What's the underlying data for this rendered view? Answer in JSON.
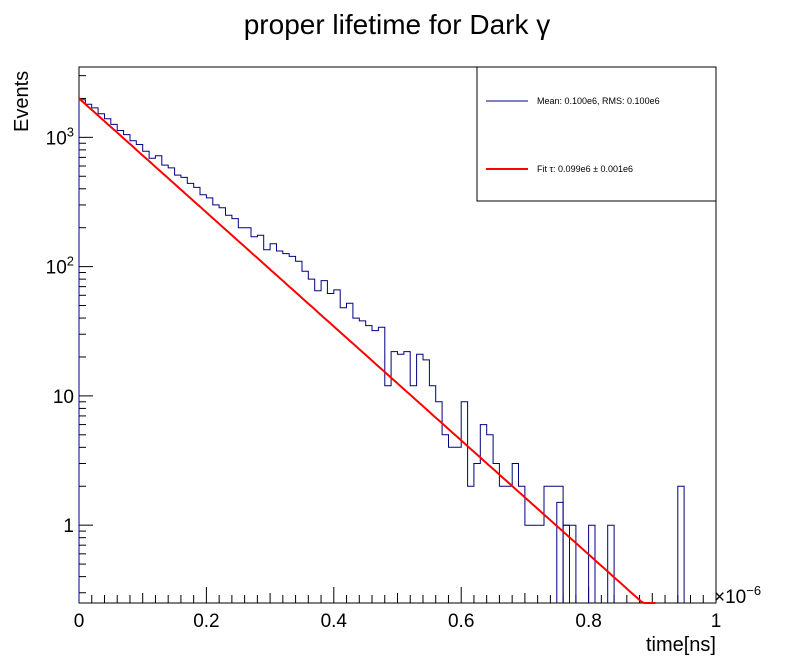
{
  "chart_data": {
    "type": "histogram",
    "title": "proper lifetime for Dark γ",
    "xlabel": "time[ns]",
    "ylabel": "Events",
    "x_multiplier": "×10",
    "x_multiplier_exp": "−6",
    "xlim": [
      0,
      1
    ],
    "ylim": [
      0.25,
      3500
    ],
    "yscale": "log",
    "x_ticks": [
      {
        "value": 0,
        "label": "0"
      },
      {
        "value": 0.2,
        "label": "0.2"
      },
      {
        "value": 0.4,
        "label": "0.4"
      },
      {
        "value": 0.6,
        "label": "0.6"
      },
      {
        "value": 0.8,
        "label": "0.8"
      },
      {
        "value": 1,
        "label": "1"
      }
    ],
    "y_ticks": [
      {
        "value": 1,
        "label": "1",
        "exp": ""
      },
      {
        "value": 10,
        "label": "10",
        "exp": ""
      },
      {
        "value": 100,
        "label": "10",
        "exp": "2"
      },
      {
        "value": 1000,
        "label": "10",
        "exp": "3"
      }
    ],
    "bin_width": 0.01,
    "bin_start": 0,
    "series": [
      {
        "name": "Mean: 0.100e6, RMS: 0.100e6",
        "color": "#000080",
        "values": [
          1950,
          1800,
          1690,
          1520,
          1390,
          1260,
          1130,
          1050,
          940,
          880,
          780,
          690,
          720,
          610,
          580,
          510,
          490,
          440,
          410,
          360,
          340,
          300,
          285,
          250,
          235,
          200,
          200,
          170,
          175,
          135,
          150,
          132,
          126,
          120,
          110,
          92,
          80,
          65,
          78,
          62,
          66,
          48,
          52,
          40,
          38,
          35,
          32,
          34,
          12,
          22,
          21,
          22,
          12,
          21,
          19,
          12,
          9,
          5,
          4,
          4,
          9,
          2,
          3,
          6,
          5,
          3,
          2,
          2,
          3,
          2,
          1,
          1,
          1,
          2,
          2,
          2,
          1,
          1,
          0,
          0,
          0,
          0,
          0,
          0,
          0,
          0,
          0,
          0,
          0,
          0,
          0,
          0,
          0,
          0,
          0,
          0,
          0,
          0,
          0,
          0
        ],
        "sparse_bins": [
          {
            "x": 0.75,
            "value": 1.5
          },
          {
            "x": 0.76,
            "value": 1
          },
          {
            "x": 0.8,
            "value": 1
          },
          {
            "x": 0.83,
            "value": 1
          },
          {
            "x": 0.94,
            "value": 2
          }
        ]
      },
      {
        "name": "Fit τ: 0.099e6 ± 0.001e6",
        "color": "#ff0000",
        "type": "exponential_fit",
        "amplitude": 2000,
        "tau": 0.0985,
        "x_range": [
          0,
          0.905
        ]
      }
    ],
    "legend_position": "top-right",
    "grid": false
  }
}
